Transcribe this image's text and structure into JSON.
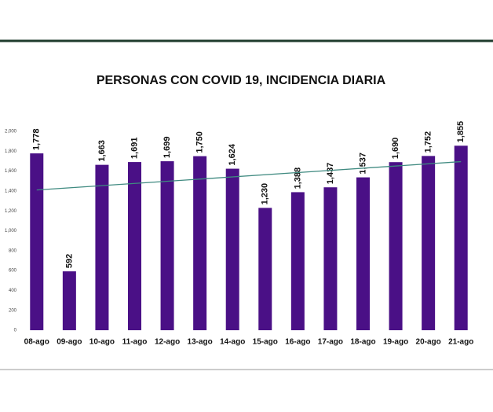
{
  "chart_data": {
    "type": "bar",
    "title": "PERSONAS CON COVID 19, INCIDENCIA DIARIA",
    "categories": [
      "08-ago",
      "09-ago",
      "10-ago",
      "11-ago",
      "12-ago",
      "13-ago",
      "14-ago",
      "15-ago",
      "16-ago",
      "17-ago",
      "18-ago",
      "19-ago",
      "20-ago",
      "21-ago"
    ],
    "values": [
      1778,
      592,
      1663,
      1691,
      1699,
      1750,
      1624,
      1230,
      1388,
      1437,
      1537,
      1690,
      1752,
      1855
    ],
    "value_labels": [
      "1,778",
      "592",
      "1,663",
      "1,691",
      "1,699",
      "1,750",
      "1,624",
      "1,230",
      "1,388",
      "1,437",
      "1,537",
      "1,690",
      "1,752",
      "1,855"
    ],
    "color": "#4a1086",
    "ylim": [
      0,
      2000
    ],
    "yticks": [
      0,
      200,
      400,
      600,
      800,
      {
        "value": 1000,
        "label": "1,000"
      },
      {
        "value": 1200,
        "label": "1,200"
      },
      {
        "value": 1400,
        "label": "1,400"
      },
      {
        "value": 1600,
        "label": "1,600"
      },
      {
        "value": 1800,
        "label": "1,800"
      },
      {
        "value": 2000,
        "label": "2,000"
      }
    ],
    "grid": false,
    "trendline": {
      "start": 1410,
      "end": 1695,
      "color": "#3f8a80"
    }
  }
}
